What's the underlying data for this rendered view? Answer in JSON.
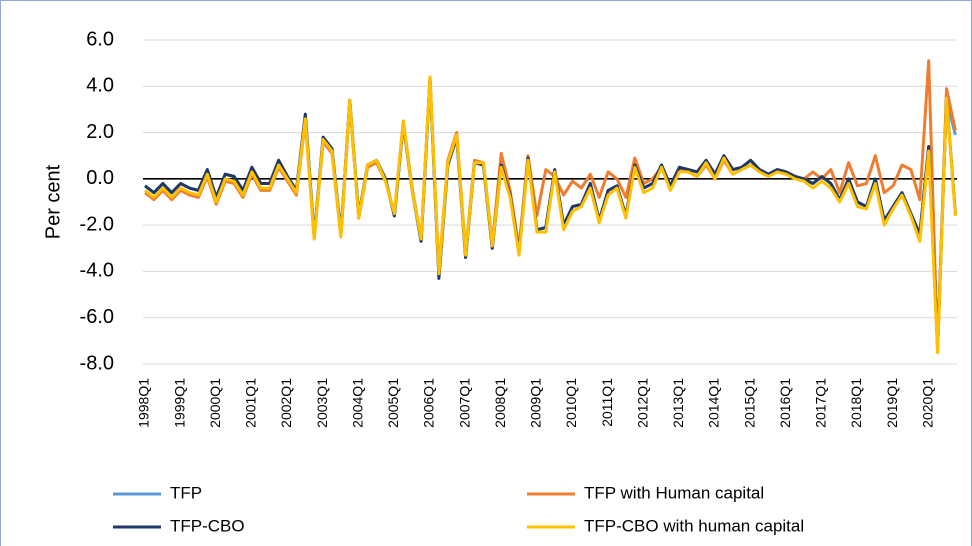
{
  "chart_data": {
    "type": "line",
    "y_label": "Per cent",
    "categories": [
      "1998Q1",
      null,
      null,
      null,
      "1999Q1",
      null,
      null,
      null,
      "2000Q1",
      null,
      null,
      null,
      "2001Q1",
      null,
      null,
      null,
      "2002Q1",
      null,
      null,
      null,
      "2003Q1",
      null,
      null,
      null,
      "2004Q1",
      null,
      null,
      null,
      "2005Q1",
      null,
      null,
      null,
      "2006Q1",
      null,
      null,
      null,
      "2007Q1",
      null,
      null,
      null,
      "2008Q1",
      null,
      null,
      null,
      "2009Q1",
      null,
      null,
      null,
      "2010Q1",
      null,
      null,
      null,
      "2011Q1",
      null,
      null,
      null,
      "2012Q1",
      null,
      null,
      null,
      "2013Q1",
      null,
      null,
      null,
      "2014Q1",
      null,
      null,
      null,
      "2015Q1",
      null,
      null,
      null,
      "2016Q1",
      null,
      null,
      null,
      "2017Q1",
      null,
      null,
      null,
      "2018Q1",
      null,
      null,
      null,
      "2019Q1",
      null,
      null,
      null,
      "2020Q1",
      null,
      null,
      null
    ],
    "series": [
      {
        "name": "TFP",
        "color": "#5b9bd5",
        "values": [
          -0.3,
          -0.6,
          -0.2,
          -0.6,
          -0.2,
          -0.4,
          -0.5,
          0.4,
          -0.8,
          0.2,
          0.1,
          -0.5,
          0.5,
          -0.2,
          -0.2,
          0.8,
          0.1,
          -0.5,
          2.7,
          -2.5,
          1.8,
          1.3,
          -2.4,
          3.4,
          -1.6,
          0.6,
          0.8,
          0.0,
          -1.6,
          2.4,
          -0.5,
          -2.7,
          4.3,
          -4.2,
          0.6,
          1.8,
          -3.4,
          0.7,
          0.6,
          -3.0,
          0.6,
          -0.7,
          -3.2,
          0.9,
          -2.2,
          -2.1,
          0.4,
          -2.0,
          -1.2,
          -1.1,
          -0.2,
          -1.8,
          -0.5,
          -0.3,
          -1.6,
          0.6,
          -0.4,
          -0.2,
          0.6,
          -0.3,
          0.5,
          0.4,
          0.3,
          0.8,
          0.2,
          1.0,
          0.4,
          0.5,
          0.8,
          0.4,
          0.2,
          0.4,
          0.3,
          0.1,
          0.0,
          -0.2,
          0.1,
          -0.2,
          -0.9,
          0.0,
          -1.0,
          -1.2,
          0.0,
          -1.8,
          -1.2,
          -0.6,
          -1.5,
          -2.4,
          1.4,
          -7.3,
          3.4,
          1.9
        ]
      },
      {
        "name": "TFP with Human capital",
        "color": "#ed7d31",
        "values": [
          -0.6,
          -0.9,
          -0.5,
          -0.9,
          -0.5,
          -0.7,
          -0.8,
          0.1,
          -1.1,
          -0.1,
          -0.2,
          -0.8,
          0.2,
          -0.5,
          -0.5,
          0.5,
          -0.1,
          -0.7,
          2.5,
          -2.6,
          1.6,
          1.1,
          -2.5,
          3.3,
          -1.7,
          0.5,
          0.7,
          -0.1,
          -1.5,
          2.5,
          -0.4,
          -2.6,
          4.4,
          -4.0,
          0.8,
          2.0,
          -3.2,
          0.8,
          0.7,
          -2.8,
          1.1,
          -0.5,
          -3.0,
          1.0,
          -1.6,
          0.4,
          0.1,
          -0.7,
          -0.1,
          -0.4,
          0.2,
          -0.8,
          0.3,
          0.0,
          -0.8,
          0.9,
          -0.2,
          0.0,
          0.5,
          -0.4,
          0.4,
          0.3,
          0.1,
          0.6,
          0.0,
          0.8,
          0.2,
          0.4,
          0.6,
          0.3,
          0.2,
          0.3,
          0.3,
          0.1,
          0.0,
          0.3,
          0.0,
          0.4,
          -0.6,
          0.7,
          -0.3,
          -0.2,
          1.0,
          -0.6,
          -0.3,
          0.6,
          0.4,
          -0.9,
          5.1,
          -7.5,
          3.9,
          2.1
        ]
      },
      {
        "name": "TFP-CBO",
        "color": "#1f3864",
        "values": [
          -0.3,
          -0.6,
          -0.2,
          -0.6,
          -0.2,
          -0.4,
          -0.5,
          0.4,
          -0.8,
          0.2,
          0.1,
          -0.5,
          0.5,
          -0.2,
          -0.2,
          0.8,
          0.1,
          -0.5,
          2.8,
          -2.5,
          1.8,
          1.3,
          -2.4,
          3.4,
          -1.6,
          0.6,
          0.8,
          0.0,
          -1.6,
          2.4,
          -0.5,
          -2.7,
          4.3,
          -4.3,
          0.6,
          1.8,
          -3.4,
          0.7,
          0.6,
          -3.0,
          0.6,
          -0.7,
          -3.2,
          0.9,
          -2.2,
          -2.1,
          0.4,
          -2.0,
          -1.2,
          -1.1,
          -0.2,
          -1.8,
          -0.5,
          -0.3,
          -1.6,
          0.6,
          -0.4,
          -0.2,
          0.6,
          -0.3,
          0.5,
          0.4,
          0.3,
          0.8,
          0.2,
          1.0,
          0.4,
          0.5,
          0.8,
          0.4,
          0.2,
          0.4,
          0.3,
          0.1,
          0.0,
          -0.2,
          0.1,
          -0.2,
          -0.9,
          0.0,
          -1.0,
          -1.2,
          0.0,
          -1.8,
          -1.2,
          -0.6,
          -1.5,
          -2.4,
          1.4,
          -7.3,
          3.5,
          -1.5
        ]
      },
      {
        "name": "TFP-CBO with human capital",
        "color": "#ffc000",
        "values": [
          -0.5,
          -0.8,
          -0.4,
          -0.8,
          -0.4,
          -0.6,
          -0.7,
          0.2,
          -1.0,
          0.0,
          -0.1,
          -0.7,
          0.3,
          -0.4,
          -0.4,
          0.6,
          0.0,
          -0.6,
          2.6,
          -2.6,
          1.7,
          1.2,
          -2.5,
          3.4,
          -1.7,
          0.6,
          0.8,
          -0.1,
          -1.5,
          2.5,
          -0.5,
          -2.6,
          4.4,
          -4.1,
          0.7,
          1.9,
          -3.3,
          0.7,
          0.7,
          -2.9,
          0.5,
          -0.8,
          -3.3,
          0.8,
          -2.3,
          -2.3,
          0.3,
          -2.2,
          -1.4,
          -1.2,
          -0.4,
          -1.9,
          -0.7,
          -0.4,
          -1.7,
          0.5,
          -0.6,
          -0.4,
          0.5,
          -0.5,
          0.3,
          0.3,
          0.1,
          0.7,
          0.0,
          0.9,
          0.2,
          0.4,
          0.6,
          0.3,
          0.1,
          0.3,
          0.2,
          0.0,
          -0.1,
          -0.4,
          -0.1,
          -0.4,
          -1.0,
          -0.2,
          -1.2,
          -1.3,
          -0.2,
          -2.0,
          -1.3,
          -0.7,
          -1.6,
          -2.7,
          1.2,
          -7.5,
          3.5,
          -1.6
        ]
      }
    ],
    "ylim": [
      -8,
      6
    ],
    "yticks": [
      {
        "value": -8,
        "label": "-8.0"
      },
      {
        "value": -6,
        "label": "-6.0"
      },
      {
        "value": -4,
        "label": "-4.0"
      },
      {
        "value": -2,
        "label": "-2.0"
      },
      {
        "value": 0,
        "label": "0.0"
      },
      {
        "value": 2,
        "label": "2.0"
      },
      {
        "value": 4,
        "label": "4.0"
      },
      {
        "value": 6,
        "label": "6.0"
      }
    ],
    "grid": true,
    "legend": "bottom"
  }
}
